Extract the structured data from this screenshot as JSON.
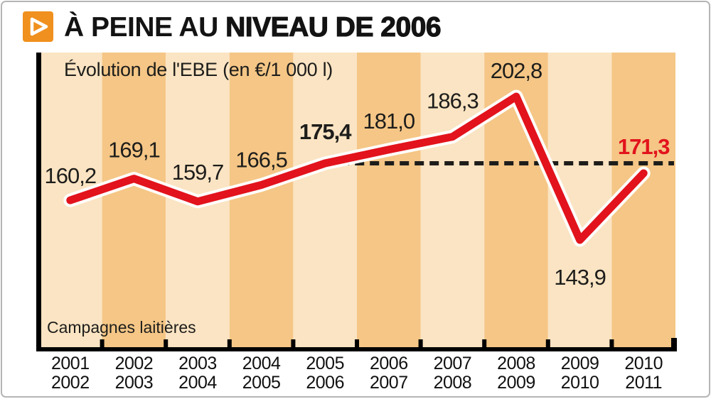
{
  "header": {
    "title_part1": "À PEINE AU",
    "title_part2": "NIVEAU DE 2006",
    "bullet_color": "#f0901e"
  },
  "chart": {
    "subtitle": "Évolution de l'EBE (en €/1 000 l)",
    "footnote": "Campagnes laitières"
  },
  "chart_data": {
    "type": "line",
    "title": "À PEINE AU NIVEAU DE 2006",
    "subtitle": "Évolution de l'EBE (en €/1 000 l)",
    "xlabel": "Campagnes laitières",
    "y_axis_visible": false,
    "grid": "vertical-stripes",
    "legend": "none",
    "ylim": [
      143.9,
      202.8
    ],
    "categories": [
      "2001\n2002",
      "2002\n2003",
      "2003\n2004",
      "2004\n2005",
      "2005\n2006",
      "2006\n2007",
      "2007\n2008",
      "2008\n2009",
      "2009\n2010",
      "2010\n2011"
    ],
    "values": [
      160.2,
      169.1,
      159.7,
      166.5,
      175.4,
      181.0,
      186.3,
      202.8,
      143.9,
      171.3
    ],
    "point_labels": [
      {
        "text": "160,2",
        "bold": false,
        "color": "#1d1d1b",
        "dy": -24
      },
      {
        "text": "169,1",
        "bold": false,
        "color": "#1d1d1b",
        "dy": -30
      },
      {
        "text": "159,7",
        "bold": false,
        "color": "#1d1d1b",
        "dy": -31
      },
      {
        "text": "166,5",
        "bold": false,
        "color": "#1d1d1b",
        "dy": -25
      },
      {
        "text": "175,4",
        "bold": true,
        "color": "#1d1d1b",
        "dy": -34
      },
      {
        "text": "181,0",
        "bold": false,
        "color": "#1d1d1b",
        "dy": -30
      },
      {
        "text": "186,3",
        "bold": false,
        "color": "#1d1d1b",
        "dy": -40
      },
      {
        "text": "202,8",
        "bold": false,
        "color": "#1d1d1b",
        "dy": -26
      },
      {
        "text": "143,9",
        "bold": false,
        "color": "#1d1d1b",
        "dy": 63
      },
      {
        "text": "171,3",
        "bold": true,
        "color": "#e2131c",
        "dy": -27
      }
    ],
    "reference_line": {
      "value": 175.4,
      "start_index": 4,
      "style": "dashed",
      "color": "#1d1d1b"
    },
    "colors": {
      "line": "#e2131c",
      "line_halo": "#ffffff",
      "stripe_light": "#fbe4c3",
      "stripe_dark": "#f5c686",
      "axis": "#000000"
    }
  }
}
